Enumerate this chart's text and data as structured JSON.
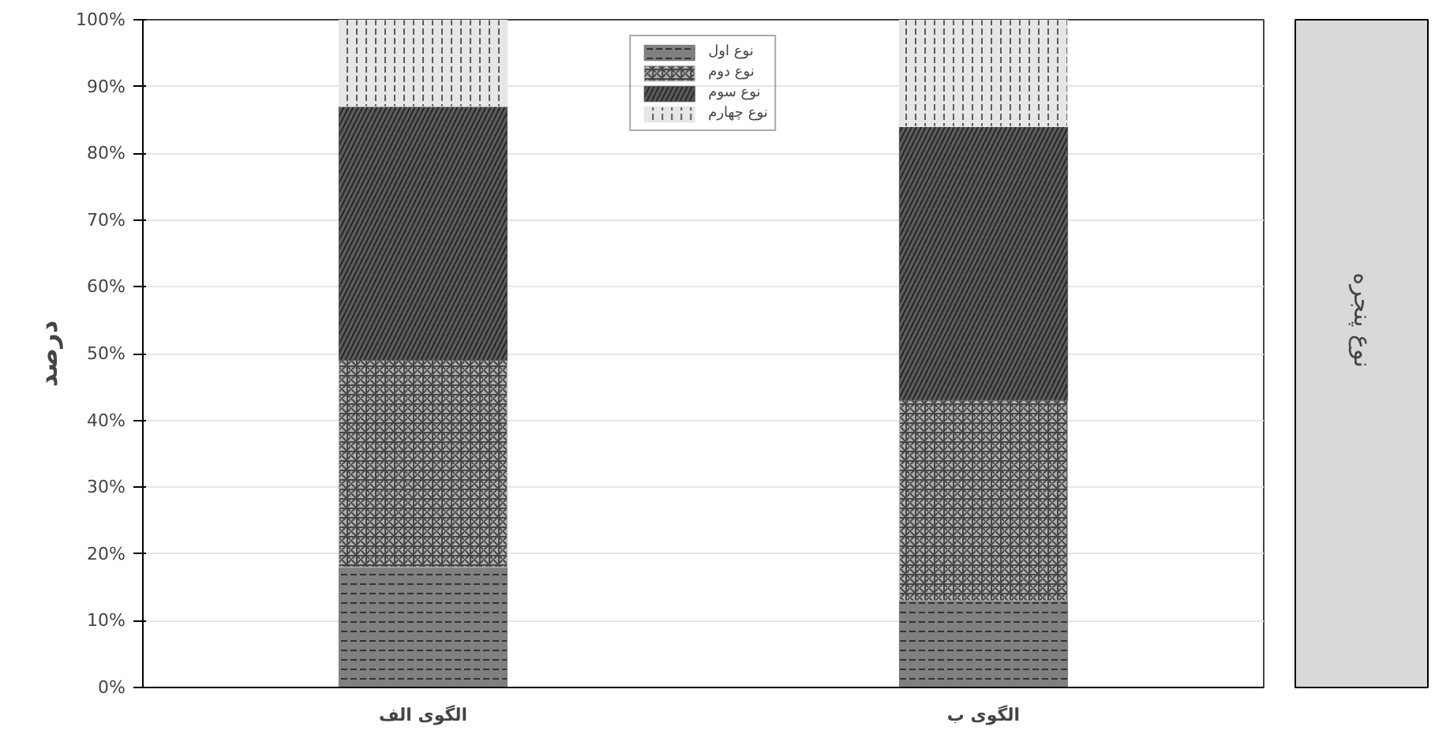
{
  "chart_data": {
    "type": "bar",
    "stacked": true,
    "ylabel": "درصد",
    "categories": [
      "الگوی الف",
      "الگوی ب"
    ],
    "series": [
      {
        "name": "نوع اول",
        "color": "#808080",
        "values": [
          18,
          13
        ]
      },
      {
        "name": "نوع دوم",
        "color": "#b0b0b0",
        "values": [
          31,
          30
        ]
      },
      {
        "name": "نوع سوم",
        "color": "#5c5c5c",
        "values": [
          38,
          41
        ]
      },
      {
        "name": "نوع چهارم",
        "color": "#e6e6e6",
        "values": [
          13,
          16
        ]
      }
    ],
    "ylim": [
      0,
      100
    ],
    "yticks": [
      {
        "value": 0,
        "label": "0%"
      },
      {
        "value": 10,
        "label": "10%"
      },
      {
        "value": 20,
        "label": "20%"
      },
      {
        "value": 30,
        "label": "30%"
      },
      {
        "value": 40,
        "label": "40%"
      },
      {
        "value": 50,
        "label": "50%"
      },
      {
        "value": 60,
        "label": "60%"
      },
      {
        "value": 70,
        "label": "70%"
      },
      {
        "value": 80,
        "label": "80%"
      },
      {
        "value": 90,
        "label": "90%"
      },
      {
        "value": 100,
        "label": "100%"
      }
    ],
    "grid": "y",
    "legend": "top",
    "annotations": [
      "نوع پنجره"
    ]
  }
}
